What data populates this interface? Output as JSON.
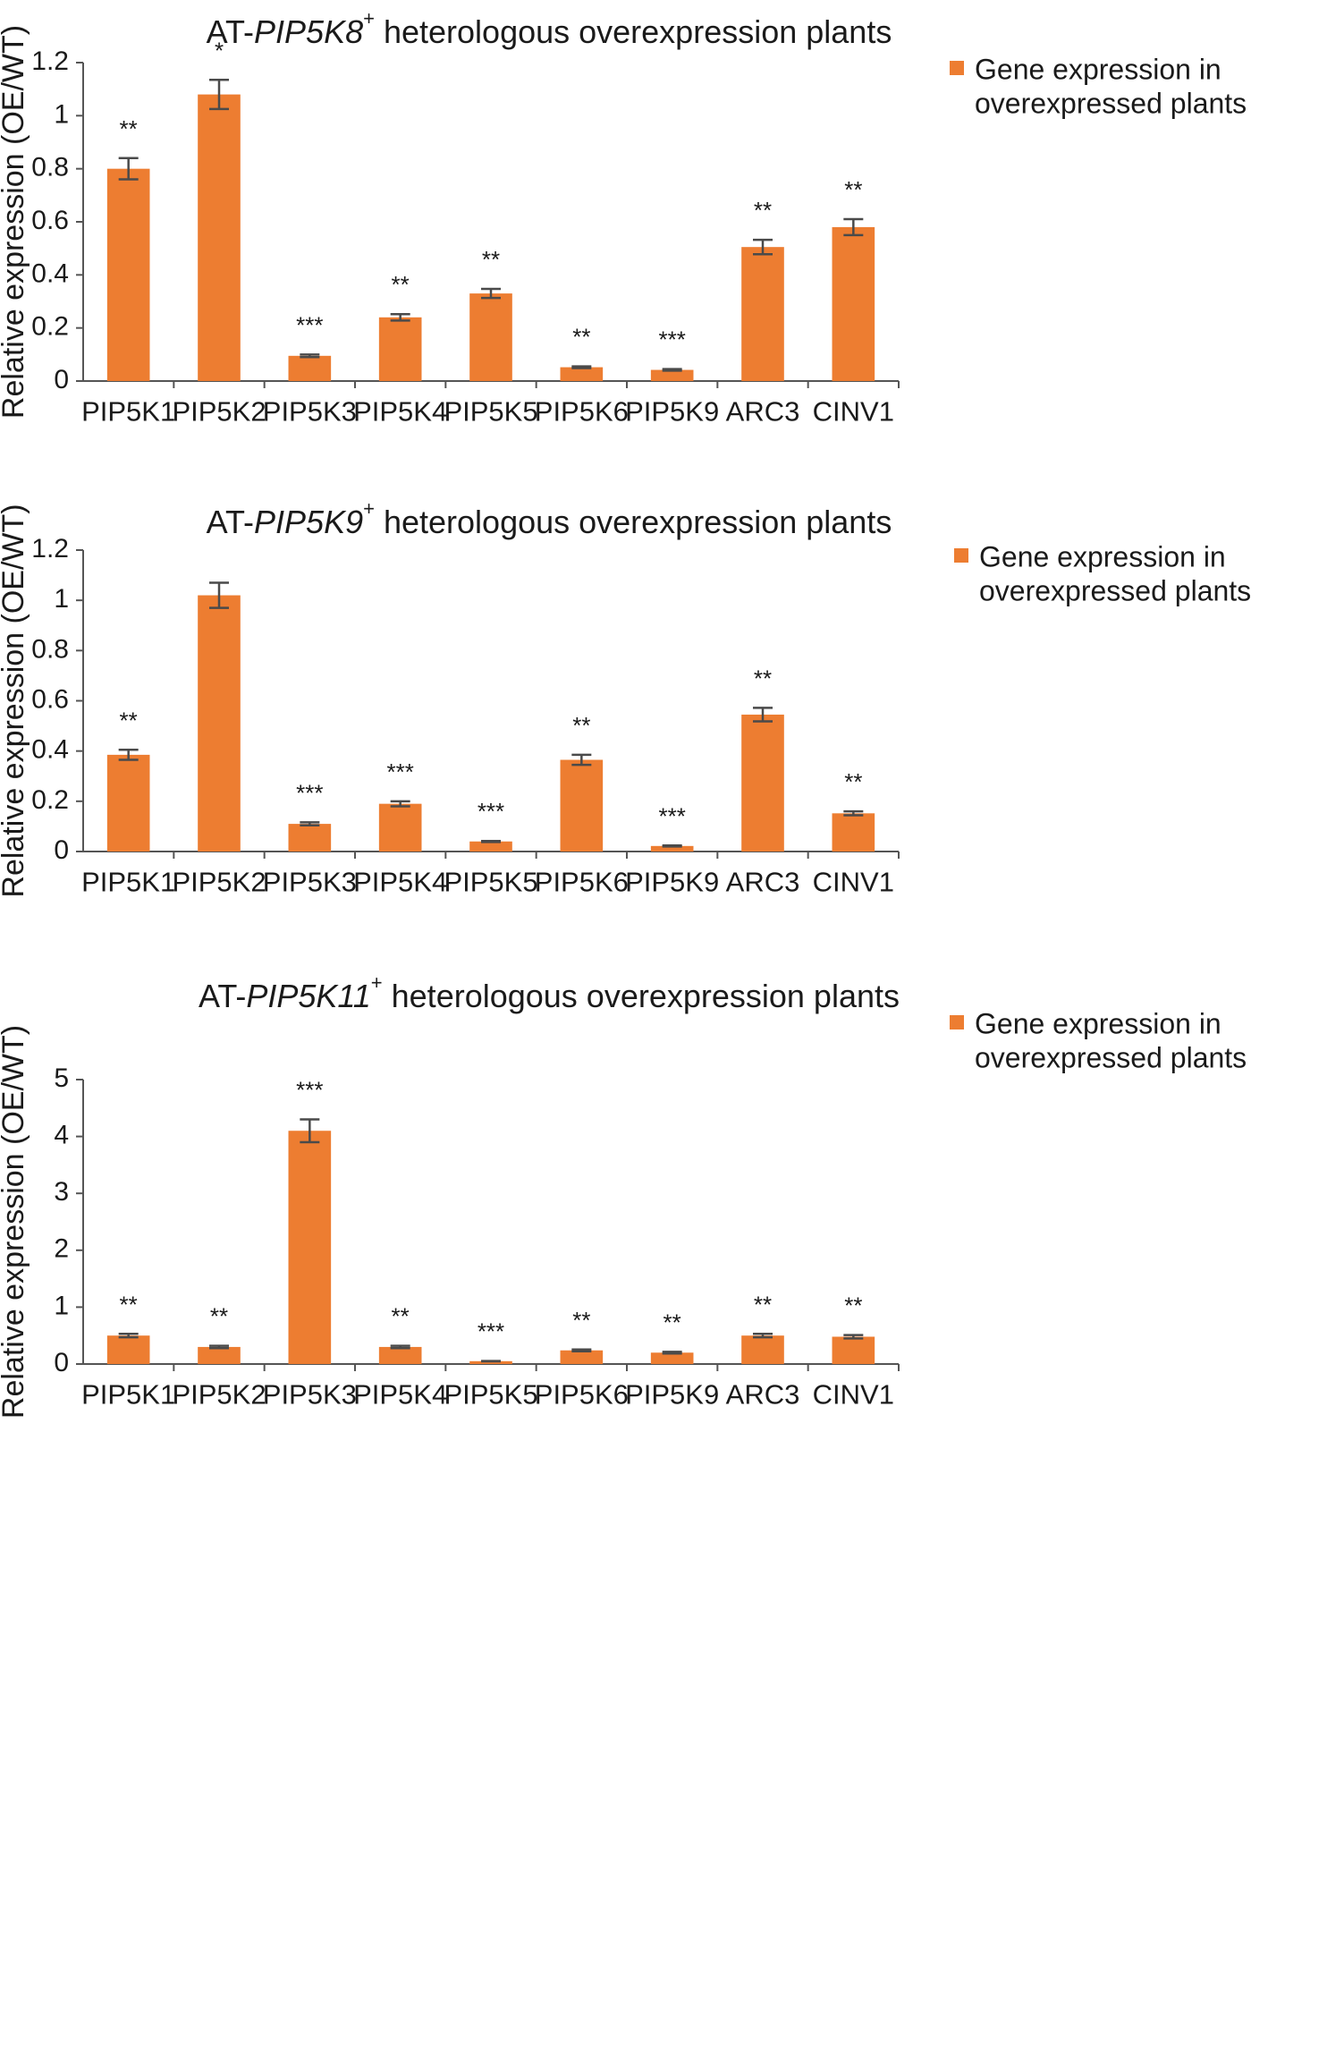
{
  "chart_data": [
    {
      "type": "bar",
      "title": {
        "prefix": "AT-",
        "gene": "PIP5K8",
        "sup": "+",
        "suffix": " heterologous overexpression plants"
      },
      "xlabel": "",
      "ylabel": "Relative expression (OE/WT)",
      "ylim": [
        0,
        1.2
      ],
      "yticks": [
        0,
        0.2,
        0.4,
        0.6,
        0.8,
        1,
        1.2
      ],
      "ytick_labels": [
        "0",
        "0.2",
        "0.4",
        "0.6",
        "0.8",
        "1",
        "1.2"
      ],
      "grid": false,
      "legend": {
        "position": "top-right",
        "lines": [
          "Gene expression in",
          "overexpressed plants"
        ]
      },
      "color": "#ed7d31",
      "categories": [
        "PIP5K1",
        "PIP5K2",
        "PIP5K3",
        "PIP5K4",
        "PIP5K5",
        "PIP5K6",
        "PIP5K9",
        "ARC3",
        "CINV1"
      ],
      "series": [
        {
          "name": "Gene expression in overexpressed plants",
          "values": [
            0.8,
            1.08,
            0.095,
            0.24,
            0.33,
            0.052,
            0.042,
            0.505,
            0.58
          ],
          "errors": [
            0.04,
            0.055,
            0.005,
            0.012,
            0.017,
            0.003,
            0.003,
            0.027,
            0.03
          ],
          "significance": [
            "**",
            "*",
            "***",
            "**",
            "**",
            "**",
            "***",
            "**",
            "**"
          ]
        }
      ]
    },
    {
      "type": "bar",
      "title": {
        "prefix": "AT-",
        "gene": "PIP5K9",
        "sup": "+",
        "suffix": " heterologous overexpression plants"
      },
      "xlabel": "",
      "ylabel": "Relative expression (OE/WT)",
      "ylim": [
        0,
        1.2
      ],
      "yticks": [
        0,
        0.2,
        0.4,
        0.6,
        0.8,
        1,
        1.2
      ],
      "ytick_labels": [
        "0",
        "0.2",
        "0.4",
        "0.6",
        "0.8",
        "1",
        "1.2"
      ],
      "grid": false,
      "legend": {
        "position": "top-right",
        "lines": [
          "Gene expression in",
          "overexpressed plants"
        ]
      },
      "color": "#ed7d31",
      "categories": [
        "PIP5K1",
        "PIP5K2",
        "PIP5K3",
        "PIP5K4",
        "PIP5K5",
        "PIP5K6",
        "PIP5K9",
        "ARC3",
        "CINV1"
      ],
      "series": [
        {
          "name": "Gene expression in overexpressed plants",
          "values": [
            0.385,
            1.02,
            0.11,
            0.19,
            0.04,
            0.365,
            0.022,
            0.545,
            0.152
          ],
          "errors": [
            0.02,
            0.05,
            0.006,
            0.01,
            0.002,
            0.02,
            0.002,
            0.027,
            0.008
          ],
          "significance": [
            "**",
            "",
            "***",
            "***",
            "***",
            "**",
            "***",
            "**",
            "**"
          ]
        }
      ]
    },
    {
      "type": "bar",
      "title": {
        "prefix": "AT-",
        "gene": "PIP5K11",
        "sup": "+",
        "suffix": " heterologous overexpression plants"
      },
      "xlabel": "",
      "ylabel": "Relative expression (OE/WT)",
      "ylim": [
        0,
        5
      ],
      "yticks": [
        0,
        1,
        2,
        3,
        4,
        5
      ],
      "ytick_labels": [
        "0",
        "1",
        "2",
        "3",
        "4",
        "5"
      ],
      "grid": false,
      "legend": {
        "position": "top-right",
        "lines": [
          "Gene expression in",
          "overexpressed plants"
        ]
      },
      "color": "#ed7d31",
      "categories": [
        "PIP5K1",
        "PIP5K2",
        "PIP5K3",
        "PIP5K4",
        "PIP5K5",
        "PIP5K6",
        "PIP5K9",
        "ARC3",
        "CINV1"
      ],
      "series": [
        {
          "name": "Gene expression in overexpressed plants",
          "values": [
            0.5,
            0.3,
            4.1,
            0.3,
            0.05,
            0.24,
            0.2,
            0.5,
            0.48
          ],
          "errors": [
            0.03,
            0.02,
            0.2,
            0.02,
            0.003,
            0.015,
            0.015,
            0.03,
            0.03
          ],
          "significance": [
            "**",
            "**",
            "***",
            "**",
            "***",
            "**",
            "**",
            "**",
            "**"
          ]
        }
      ]
    }
  ]
}
